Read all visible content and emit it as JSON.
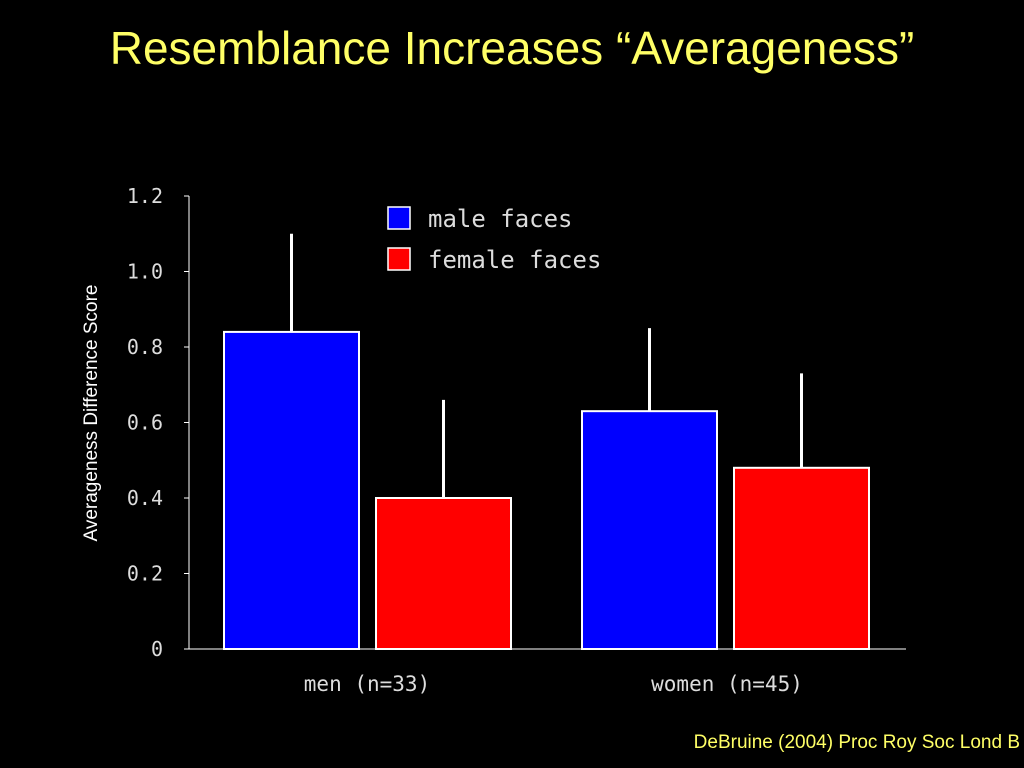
{
  "slide": {
    "title": "Resemblance Increases “Averageness”",
    "citation": "DeBruine (2004) Proc Roy Soc Lond B"
  },
  "colors": {
    "title": "#ffff66",
    "background": "#000000",
    "male": "#0000ff",
    "female": "#ff0000"
  },
  "chart_data": {
    "type": "bar",
    "title": "",
    "xlabel": "",
    "ylabel": "Averageness Difference Score",
    "ylim": [
      0,
      1.2
    ],
    "yticks": [
      "0",
      "0.2",
      "0.4",
      "0.6",
      "0.8",
      "1.0",
      "1.2"
    ],
    "categories": [
      "men (n=33)",
      "women (n=45)"
    ],
    "series": [
      {
        "name": "male faces",
        "color": "#0000ff",
        "values": [
          0.84,
          0.63
        ],
        "error_upper": [
          1.1,
          0.85
        ]
      },
      {
        "name": "female faces",
        "color": "#ff0000",
        "values": [
          0.4,
          0.48
        ],
        "error_upper": [
          0.66,
          0.73
        ]
      }
    ],
    "legend": "top-center",
    "grid": false
  }
}
